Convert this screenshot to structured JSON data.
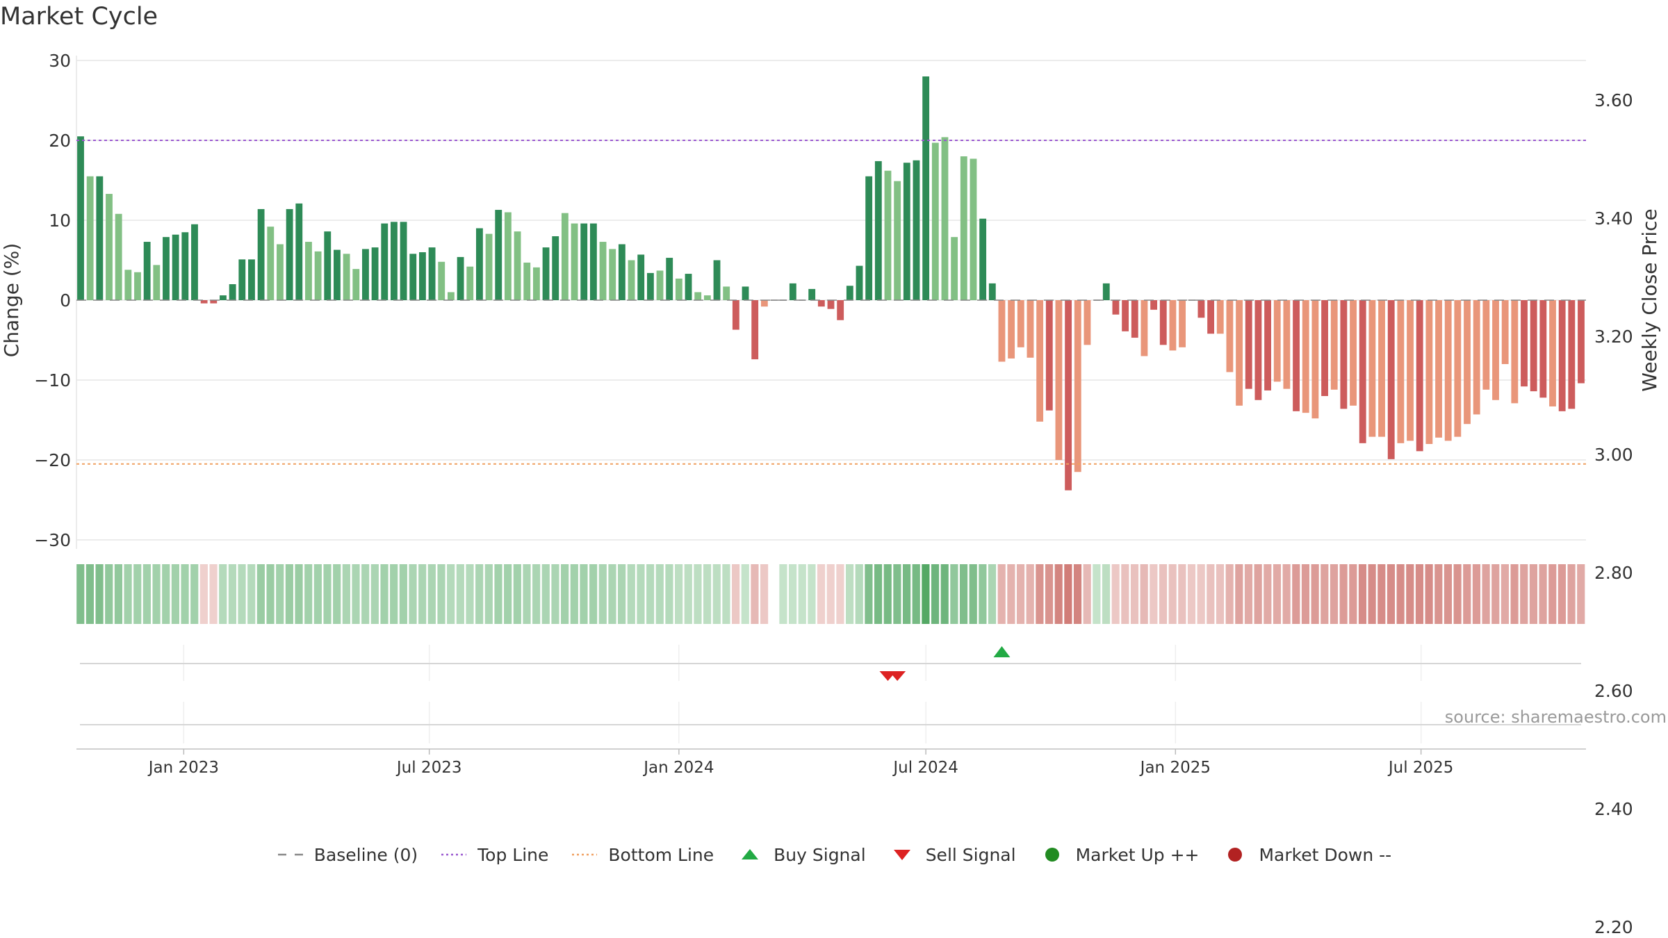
{
  "chart_data": {
    "type": "bar",
    "title": "Market Cycle",
    "ylabel_left": "Change (%)",
    "ylabel_right": "Weekly Close Price",
    "ylim": [
      -31,
      31
    ],
    "yticks_left": [
      30,
      20,
      10,
      0,
      -10,
      -20,
      -30
    ],
    "ytick_labels_left": [
      "30",
      "20",
      "10",
      "0",
      "−10",
      "−20",
      "−30"
    ],
    "yticks_right": [
      3.6,
      3.4,
      3.2,
      3.0,
      2.8,
      2.6,
      2.4,
      2.2
    ],
    "ytick_labels_right": [
      "3.60",
      "3.40",
      "3.20",
      "3.00",
      "2.80",
      "2.60",
      "2.40",
      "2.20"
    ],
    "right_ylim": [
      2.12,
      3.73
    ],
    "x_start": "2022-10-17",
    "x_end": "2025-09-15",
    "x_interval_days": 7,
    "xticks": [
      "2023-01-01",
      "2023-07-01",
      "2024-01-01",
      "2024-07-01",
      "2025-01-01",
      "2025-07-01"
    ],
    "xtick_labels": [
      "Jan 2023",
      "Jul 2023",
      "Jan 2024",
      "Jul 2024",
      "Jan 2025",
      "Jul 2025"
    ],
    "top_line": 20,
    "bottom_line": -20.5,
    "baseline": 0,
    "values": [
      20.5,
      15.5,
      15.5,
      13.3,
      10.8,
      3.8,
      3.5,
      7.3,
      4.4,
      7.9,
      8.2,
      8.5,
      9.5,
      -0.4,
      -0.4,
      0.6,
      2.0,
      5.1,
      5.1,
      11.4,
      9.2,
      7.0,
      11.4,
      12.1,
      7.3,
      6.1,
      8.6,
      6.3,
      5.8,
      3.9,
      6.4,
      6.6,
      9.6,
      9.8,
      9.8,
      5.8,
      6.0,
      6.6,
      4.8,
      1.0,
      5.4,
      4.2,
      9.0,
      8.3,
      11.3,
      11.0,
      8.6,
      4.7,
      4.1,
      6.6,
      8.0,
      10.9,
      9.6,
      9.6,
      9.6,
      7.3,
      6.4,
      7.0,
      5.0,
      5.7,
      3.4,
      3.7,
      5.3,
      2.7,
      3.3,
      1.0,
      0.6,
      5.0,
      1.7,
      -3.7,
      1.7,
      -7.4,
      -0.8,
      0,
      0,
      2.1,
      0,
      1.4,
      -0.8,
      -1.1,
      -2.5,
      1.8,
      4.3,
      15.5,
      17.4,
      16.2,
      14.9,
      17.2,
      17.5,
      28.0,
      19.7,
      20.4,
      7.9,
      18.0,
      17.7,
      10.2,
      2.1,
      -7.7,
      -7.3,
      -5.9,
      -7.2,
      -15.2,
      -13.8,
      -20.0,
      -23.8,
      -21.5,
      -5.6,
      0,
      2.1,
      -1.8,
      -3.9,
      -4.7,
      -7.0,
      -1.2,
      -5.6,
      -6.3,
      -5.9,
      0,
      -2.2,
      -4.2,
      -4.2,
      -9.0,
      -13.2,
      -11.1,
      -12.5,
      -11.3,
      -10.2,
      -11.1,
      -13.9,
      -14.1,
      -14.8,
      -12.0,
      -11.2,
      -13.6,
      -13.2,
      -17.9,
      -17.1,
      -17.1,
      -19.9,
      -17.9,
      -17.6,
      -18.9,
      -18.0,
      -17.2,
      -17.6,
      -17.1,
      -15.5,
      -14.3,
      -11.2,
      -12.5,
      -8.0,
      -12.9,
      -10.8,
      -11.4,
      -12.2,
      -13.3,
      -13.9,
      -13.6,
      -10.4
    ],
    "weak_indices": [
      1,
      3,
      4,
      5,
      6,
      8,
      20,
      21,
      24,
      25,
      28,
      29,
      38,
      39,
      41,
      43,
      45,
      46,
      47,
      48,
      51,
      52,
      55,
      56,
      58,
      61,
      63,
      65,
      66,
      68,
      72,
      85,
      86,
      90,
      91,
      92,
      93,
      94,
      97,
      98,
      99,
      100,
      101,
      103,
      105,
      106,
      112,
      115,
      116,
      117,
      120,
      121,
      122,
      126,
      127,
      129,
      130,
      132,
      134,
      136,
      137,
      139,
      140,
      142,
      143,
      144,
      145,
      146,
      147,
      148,
      149,
      150,
      151,
      155,
      159,
      163,
      165,
      167,
      168
    ],
    "heat": [
      0.6,
      0.6,
      0.6,
      0.5,
      0.5,
      0.4,
      0.4,
      0.4,
      0.4,
      0.4,
      0.4,
      0.4,
      0.4,
      -0.15,
      -0.15,
      0.3,
      0.3,
      0.3,
      0.3,
      0.45,
      0.45,
      0.4,
      0.45,
      0.45,
      0.4,
      0.4,
      0.4,
      0.4,
      0.35,
      0.35,
      0.35,
      0.35,
      0.4,
      0.4,
      0.4,
      0.35,
      0.35,
      0.35,
      0.35,
      0.3,
      0.3,
      0.3,
      0.35,
      0.35,
      0.4,
      0.4,
      0.4,
      0.35,
      0.35,
      0.35,
      0.35,
      0.4,
      0.4,
      0.4,
      0.4,
      0.35,
      0.35,
      0.35,
      0.3,
      0.3,
      0.3,
      0.3,
      0.3,
      0.25,
      0.25,
      0.25,
      0.25,
      0.25,
      0.25,
      -0.2,
      0.2,
      -0.3,
      -0.2,
      null,
      0.2,
      0.2,
      0.2,
      0.2,
      -0.15,
      -0.15,
      -0.15,
      0.25,
      0.3,
      0.6,
      0.65,
      0.65,
      0.6,
      0.65,
      0.65,
      0.85,
      0.7,
      0.7,
      0.5,
      0.6,
      0.6,
      0.5,
      0.35,
      -0.35,
      -0.35,
      -0.35,
      -0.35,
      -0.55,
      -0.55,
      -0.65,
      -0.7,
      -0.65,
      -0.3,
      0.2,
      0.25,
      -0.2,
      -0.25,
      -0.25,
      -0.3,
      -0.2,
      -0.25,
      -0.25,
      -0.25,
      -0.2,
      -0.2,
      -0.25,
      -0.25,
      -0.35,
      -0.45,
      -0.4,
      -0.45,
      -0.4,
      -0.4,
      -0.4,
      -0.5,
      -0.5,
      -0.5,
      -0.45,
      -0.45,
      -0.5,
      -0.5,
      -0.6,
      -0.6,
      -0.6,
      -0.6,
      -0.6,
      -0.6,
      -0.6,
      -0.6,
      -0.55,
      -0.55,
      -0.55,
      -0.5,
      -0.5,
      -0.45,
      -0.45,
      -0.4,
      -0.5,
      -0.45,
      -0.45,
      -0.45,
      -0.5,
      -0.5,
      -0.45,
      -0.4
    ],
    "buy_signals": [
      "2024-08-26"
    ],
    "sell_signals": [
      "2024-06-03",
      "2024-06-10"
    ],
    "source": "source: sharemaestro.com",
    "legend": [
      {
        "label": "Baseline (0)",
        "symbol": "dash",
        "color": "#888888"
      },
      {
        "label": "Top Line",
        "symbol": "dot",
        "color": "#9b59d0"
      },
      {
        "label": "Bottom Line",
        "symbol": "dot",
        "color": "#f0a060"
      },
      {
        "label": "Buy Signal",
        "symbol": "triangle-up",
        "color": "#22aa44"
      },
      {
        "label": "Sell Signal",
        "symbol": "triangle-down",
        "color": "#dd2222"
      },
      {
        "label": "Market Up ++",
        "symbol": "circle",
        "color": "#228b22"
      },
      {
        "label": "Market Down --",
        "symbol": "circle",
        "color": "#b22222"
      }
    ],
    "colors": {
      "strong_up": "#2e8b57",
      "weak_up": "#82c084",
      "strong_down": "#cd5c5c",
      "weak_down": "#e9967a",
      "grid": "#e6e6e6"
    }
  }
}
